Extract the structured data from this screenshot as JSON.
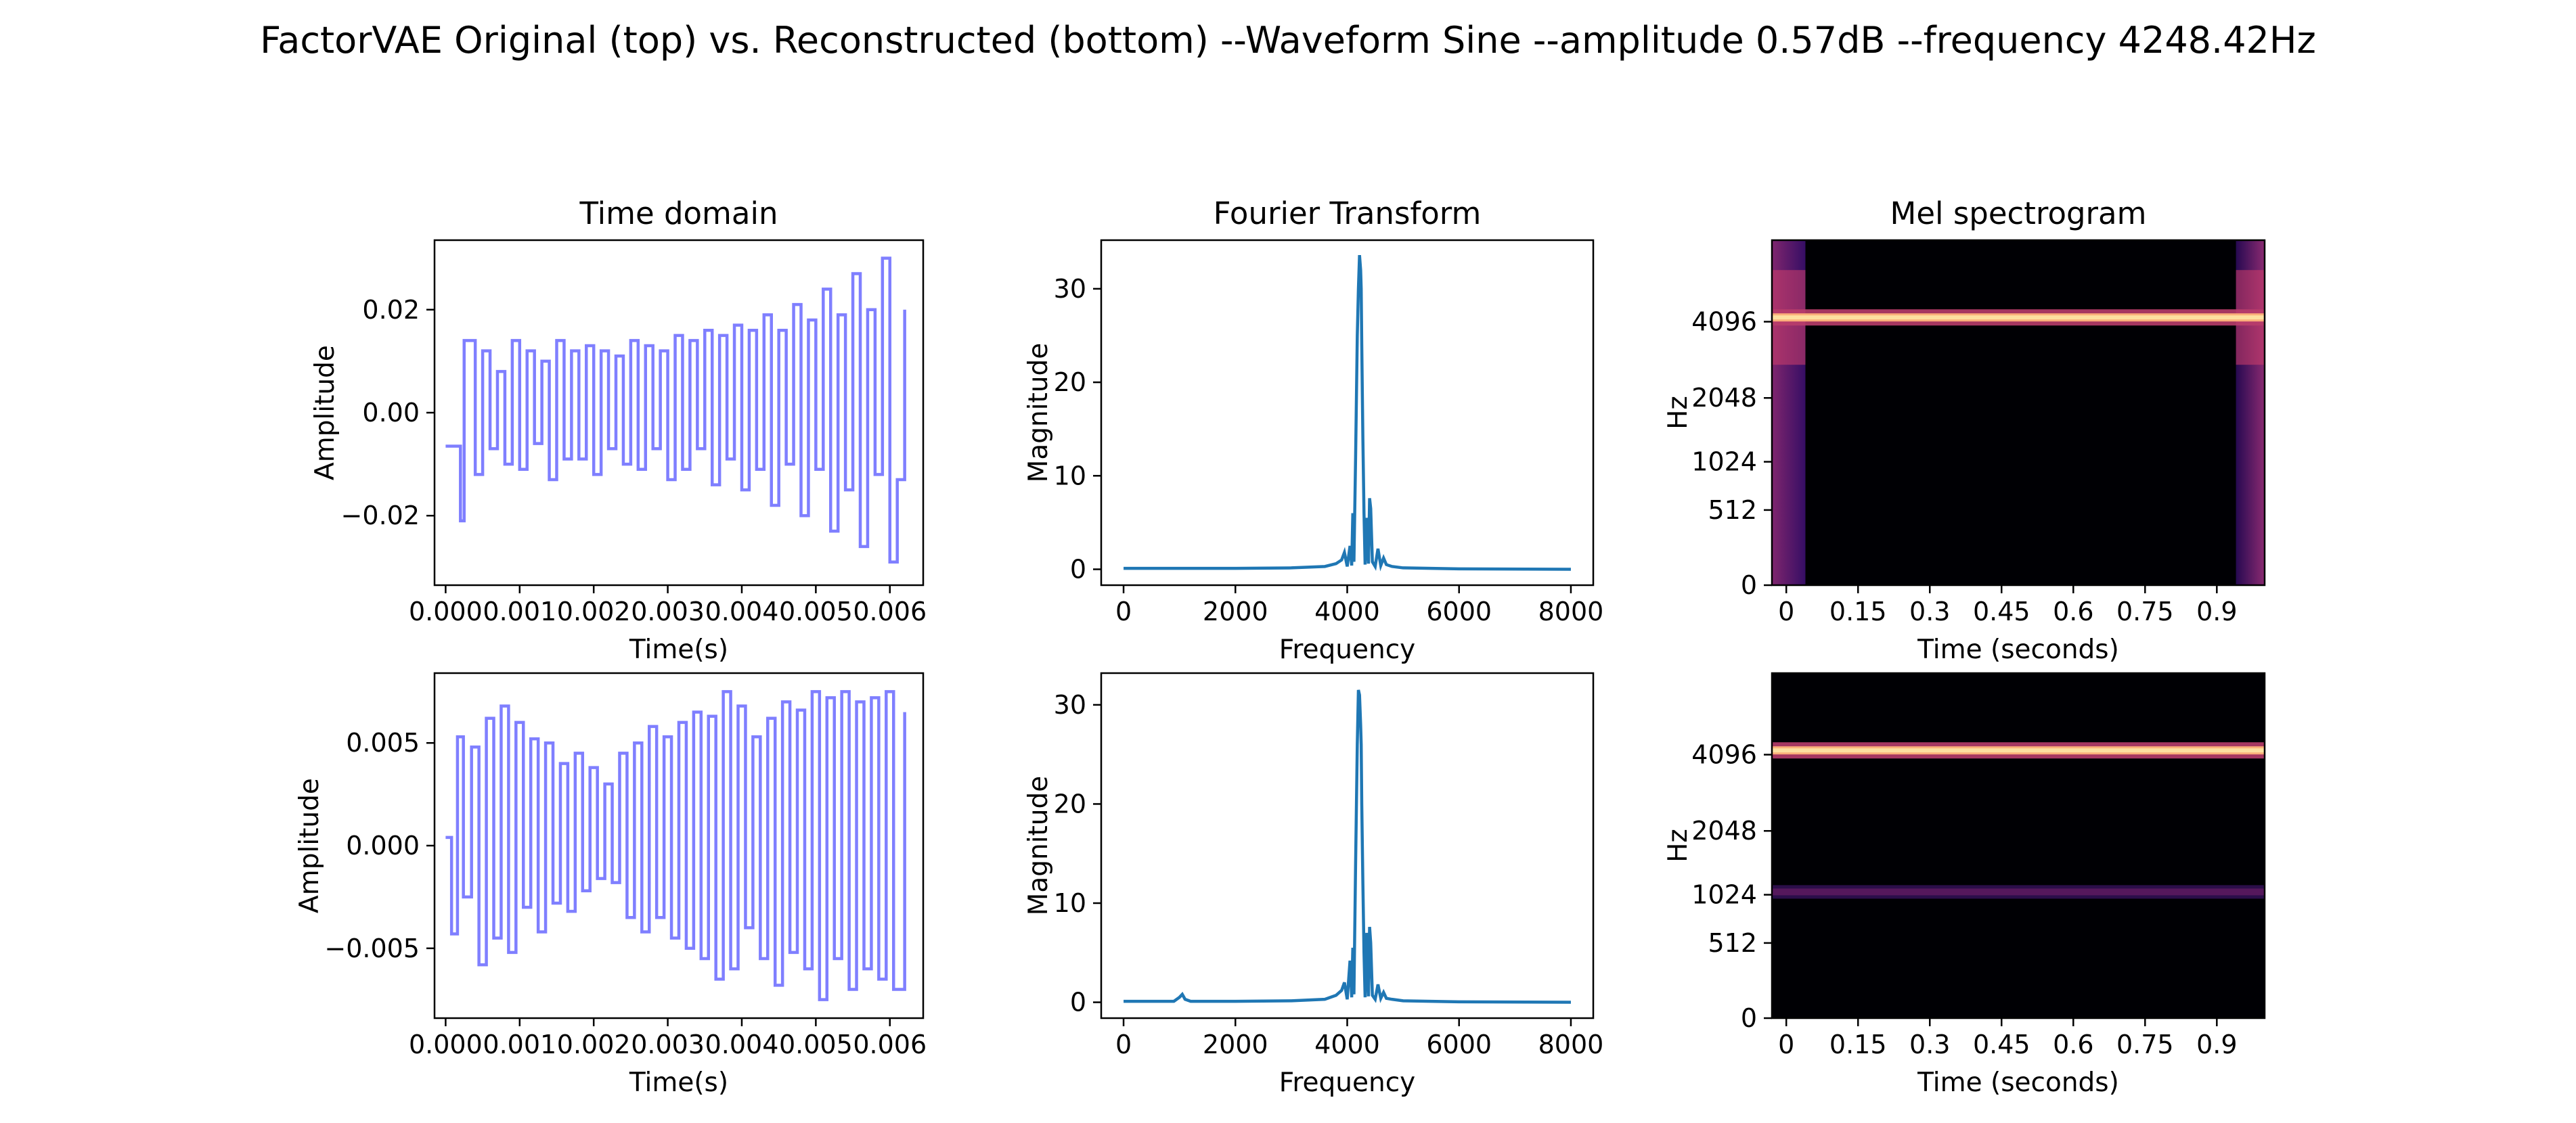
{
  "suptitle": "FactorVAE Original (top) vs. Reconstructed (bottom) --Waveform Sine --amplitude 0.57dB --frequency 4248.42Hz",
  "colors": {
    "time_line": "#7f7fff",
    "fft_line": "#1f77b4",
    "mel_background": "#000004",
    "mel_band": "#fde0a0"
  },
  "chart_data": [
    {
      "id": "time-top",
      "type": "line",
      "row": "original",
      "title": "Time domain",
      "xlabel": "Time(s)",
      "ylabel": "Amplitude",
      "xlim": [
        -0.00015,
        0.00645
      ],
      "ylim": [
        -0.0335,
        0.0335
      ],
      "xticks": [
        0.0,
        0.001,
        0.002,
        0.003,
        0.004,
        0.005,
        0.006
      ],
      "xtick_labels": [
        "0.000",
        "0.001",
        "0.002",
        "0.003",
        "0.004",
        "0.005",
        "0.006"
      ],
      "yticks": [
        -0.02,
        0.0,
        0.02
      ],
      "ytick_labels": [
        "−0.02",
        "0.00",
        "0.02"
      ],
      "series": [
        {
          "x": [
            0.0,
            0.0002,
            0.00025,
            0.0004,
            0.0005,
            0.0006,
            0.0007,
            0.0008,
            0.0009,
            0.001,
            0.0011,
            0.0012,
            0.0013,
            0.0014,
            0.0015,
            0.0016,
            0.0017,
            0.0018,
            0.0019,
            0.002,
            0.0021,
            0.0022,
            0.0023,
            0.0024,
            0.0025,
            0.0026,
            0.0027,
            0.0028,
            0.0029,
            0.003,
            0.0031,
            0.0032,
            0.0033,
            0.0034,
            0.0035,
            0.0036,
            0.0037,
            0.0038,
            0.0039,
            0.004,
            0.0041,
            0.0042,
            0.0043,
            0.0044,
            0.0045,
            0.0046,
            0.0047,
            0.0048,
            0.0049,
            0.005,
            0.0051,
            0.0052,
            0.0053,
            0.0054,
            0.0055,
            0.0056,
            0.0057,
            0.0058,
            0.0059,
            0.006,
            0.0061,
            0.0062
          ],
          "y": [
            -0.0065,
            -0.021,
            0.014,
            -0.012,
            0.012,
            -0.007,
            0.008,
            -0.01,
            0.014,
            -0.011,
            0.012,
            -0.006,
            0.01,
            -0.013,
            0.014,
            -0.009,
            0.012,
            -0.009,
            0.013,
            -0.012,
            0.012,
            -0.007,
            0.011,
            -0.01,
            0.014,
            -0.011,
            0.013,
            -0.007,
            0.012,
            -0.013,
            0.015,
            -0.011,
            0.014,
            -0.007,
            0.016,
            -0.014,
            0.015,
            -0.009,
            0.017,
            -0.015,
            0.016,
            -0.011,
            0.019,
            -0.018,
            0.016,
            -0.01,
            0.021,
            -0.02,
            0.018,
            -0.011,
            0.024,
            -0.023,
            0.019,
            -0.015,
            0.027,
            -0.026,
            0.02,
            -0.012,
            0.03,
            -0.029,
            -0.013,
            0.02
          ]
        }
      ]
    },
    {
      "id": "fft-top",
      "type": "line",
      "row": "original",
      "title": "Fourier Transform",
      "xlabel": "Frequency",
      "ylabel": "Magnitude",
      "xlim": [
        -400,
        8400
      ],
      "ylim": [
        -1.7,
        35.2
      ],
      "xticks": [
        0,
        2000,
        4000,
        6000,
        8000
      ],
      "xtick_labels": [
        "0",
        "2000",
        "4000",
        "6000",
        "8000"
      ],
      "yticks": [
        0,
        10,
        20,
        30
      ],
      "ytick_labels": [
        "0",
        "10",
        "20",
        "30"
      ],
      "series": [
        {
          "x": [
            0,
            1000,
            2000,
            3000,
            3600,
            3800,
            3900,
            3950,
            4000,
            4050,
            4080,
            4100,
            4120,
            4150,
            4180,
            4200,
            4220,
            4240,
            4250,
            4260,
            4280,
            4300,
            4320,
            4350,
            4380,
            4400,
            4420,
            4450,
            4500,
            4550,
            4600,
            4650,
            4700,
            4800,
            5000,
            6000,
            8000
          ],
          "y": [
            0.1,
            0.1,
            0.1,
            0.15,
            0.3,
            0.6,
            1.0,
            1.8,
            0.3,
            2.5,
            0.4,
            6.0,
            0.8,
            12.0,
            25.0,
            30.0,
            33.6,
            32.0,
            30.0,
            24.0,
            14.0,
            6.0,
            0.5,
            5.5,
            0.6,
            7.6,
            6.5,
            0.8,
            0.3,
            2.2,
            0.4,
            1.2,
            0.5,
            0.3,
            0.15,
            0.05,
            0.0
          ]
        }
      ]
    },
    {
      "id": "mel-top",
      "type": "heatmap",
      "row": "original",
      "title": "Mel spectrogram",
      "xlabel": "Time (seconds)",
      "ylabel": "Hz",
      "xlim": [
        -0.03,
        1.0
      ],
      "xticks": [
        0,
        0.15,
        0.3,
        0.45,
        0.6,
        0.75,
        0.9
      ],
      "xtick_labels": [
        "0",
        "0.15",
        "0.3",
        "0.45",
        "0.6",
        "0.75",
        "0.9"
      ],
      "yscale": "mel",
      "ylim": [
        0,
        8000
      ],
      "yticks": [
        0,
        512,
        1024,
        2048,
        4096
      ],
      "ytick_labels": [
        "0",
        "512",
        "1024",
        "2048",
        "4096"
      ],
      "bands": [
        {
          "freq": 4248.42,
          "intensity": 1.0
        }
      ],
      "edge_bursts": [
        {
          "t_start": -0.03,
          "t_end": 0.04
        },
        {
          "t_start": 0.94,
          "t_end": 1.0
        }
      ]
    },
    {
      "id": "time-bottom",
      "type": "line",
      "row": "reconstructed",
      "xlabel": "Time(s)",
      "ylabel": "Amplitude",
      "xlim": [
        -0.00015,
        0.00645
      ],
      "ylim": [
        -0.0084,
        0.0084
      ],
      "xticks": [
        0.0,
        0.001,
        0.002,
        0.003,
        0.004,
        0.005,
        0.006
      ],
      "xtick_labels": [
        "0.000",
        "0.001",
        "0.002",
        "0.003",
        "0.004",
        "0.005",
        "0.006"
      ],
      "yticks": [
        -0.005,
        0.0,
        0.005
      ],
      "ytick_labels": [
        "−0.005",
        "0.000",
        "0.005"
      ],
      "series": [
        {
          "x": [
            0.0,
            8e-05,
            0.00016,
            0.00024,
            0.00035,
            0.00045,
            0.00055,
            0.00065,
            0.00075,
            0.00085,
            0.00095,
            0.00105,
            0.00115,
            0.00125,
            0.00135,
            0.00145,
            0.00155,
            0.00165,
            0.00175,
            0.00185,
            0.00195,
            0.00205,
            0.00215,
            0.00225,
            0.00235,
            0.00245,
            0.00255,
            0.00265,
            0.00275,
            0.00285,
            0.00295,
            0.00305,
            0.00315,
            0.00325,
            0.00335,
            0.00345,
            0.00355,
            0.00365,
            0.00375,
            0.00385,
            0.00395,
            0.00405,
            0.00415,
            0.00425,
            0.00435,
            0.00445,
            0.00455,
            0.00465,
            0.00475,
            0.00485,
            0.00495,
            0.00505,
            0.00515,
            0.00525,
            0.00535,
            0.00545,
            0.00555,
            0.00565,
            0.00575,
            0.00585,
            0.00595,
            0.00605,
            0.0062
          ],
          "y": [
            0.0004,
            -0.0043,
            0.0053,
            -0.0025,
            0.0048,
            -0.0058,
            0.0062,
            -0.0045,
            0.0068,
            -0.0052,
            0.006,
            -0.003,
            0.0052,
            -0.0042,
            0.005,
            -0.0028,
            0.004,
            -0.0032,
            0.0045,
            -0.0022,
            0.0038,
            -0.0016,
            0.003,
            -0.0018,
            0.0045,
            -0.0035,
            0.005,
            -0.0042,
            0.0058,
            -0.0035,
            0.0053,
            -0.0045,
            0.006,
            -0.005,
            0.0065,
            -0.0055,
            0.0063,
            -0.0065,
            0.0075,
            -0.006,
            0.0068,
            -0.004,
            0.0053,
            -0.0055,
            0.0062,
            -0.0068,
            0.007,
            -0.0052,
            0.0066,
            -0.006,
            0.0075,
            -0.0075,
            0.0072,
            -0.0055,
            0.0075,
            -0.007,
            0.007,
            -0.006,
            0.0072,
            -0.0065,
            0.0075,
            -0.007,
            0.0065
          ]
        }
      ]
    },
    {
      "id": "fft-bottom",
      "type": "line",
      "row": "reconstructed",
      "xlabel": "Frequency",
      "ylabel": "Magnitude",
      "xlim": [
        -400,
        8400
      ],
      "ylim": [
        -1.6,
        33.2
      ],
      "xticks": [
        0,
        2000,
        4000,
        6000,
        8000
      ],
      "xtick_labels": [
        "0",
        "2000",
        "4000",
        "6000",
        "8000"
      ],
      "yticks": [
        0,
        10,
        20,
        30
      ],
      "ytick_labels": [
        "0",
        "10",
        "20",
        "30"
      ],
      "series": [
        {
          "x": [
            0,
            900,
            1000,
            1050,
            1100,
            1200,
            2000,
            3000,
            3600,
            3800,
            3900,
            3950,
            4000,
            4050,
            4080,
            4100,
            4120,
            4150,
            4180,
            4200,
            4220,
            4240,
            4250,
            4260,
            4280,
            4300,
            4320,
            4350,
            4380,
            4400,
            4420,
            4450,
            4500,
            4550,
            4600,
            4650,
            4700,
            4800,
            5000,
            6000,
            8000
          ],
          "y": [
            0.1,
            0.1,
            0.5,
            0.8,
            0.3,
            0.1,
            0.1,
            0.15,
            0.3,
            0.7,
            1.2,
            2.0,
            0.3,
            4.2,
            0.5,
            5.5,
            0.8,
            14.0,
            26.0,
            31.5,
            31.0,
            28.0,
            26.0,
            20.0,
            12.0,
            5.0,
            0.5,
            7.0,
            0.6,
            7.6,
            6.0,
            0.7,
            0.3,
            1.8,
            0.4,
            1.0,
            0.4,
            0.3,
            0.15,
            0.05,
            0.0
          ]
        }
      ]
    },
    {
      "id": "mel-bottom",
      "type": "heatmap",
      "row": "reconstructed",
      "xlabel": "Time (seconds)",
      "ylabel": "Hz",
      "xlim": [
        -0.03,
        1.0
      ],
      "xticks": [
        0,
        0.15,
        0.3,
        0.45,
        0.6,
        0.75,
        0.9
      ],
      "xtick_labels": [
        "0",
        "0.15",
        "0.3",
        "0.45",
        "0.6",
        "0.75",
        "0.9"
      ],
      "yscale": "mel",
      "ylim": [
        0,
        8000
      ],
      "yticks": [
        0,
        512,
        1024,
        2048,
        4096
      ],
      "ytick_labels": [
        "0",
        "512",
        "1024",
        "2048",
        "4096"
      ],
      "bands": [
        {
          "freq": 4248.42,
          "intensity": 1.0
        },
        {
          "freq": 1060,
          "intensity": 0.35
        }
      ],
      "edge_bursts": []
    }
  ]
}
